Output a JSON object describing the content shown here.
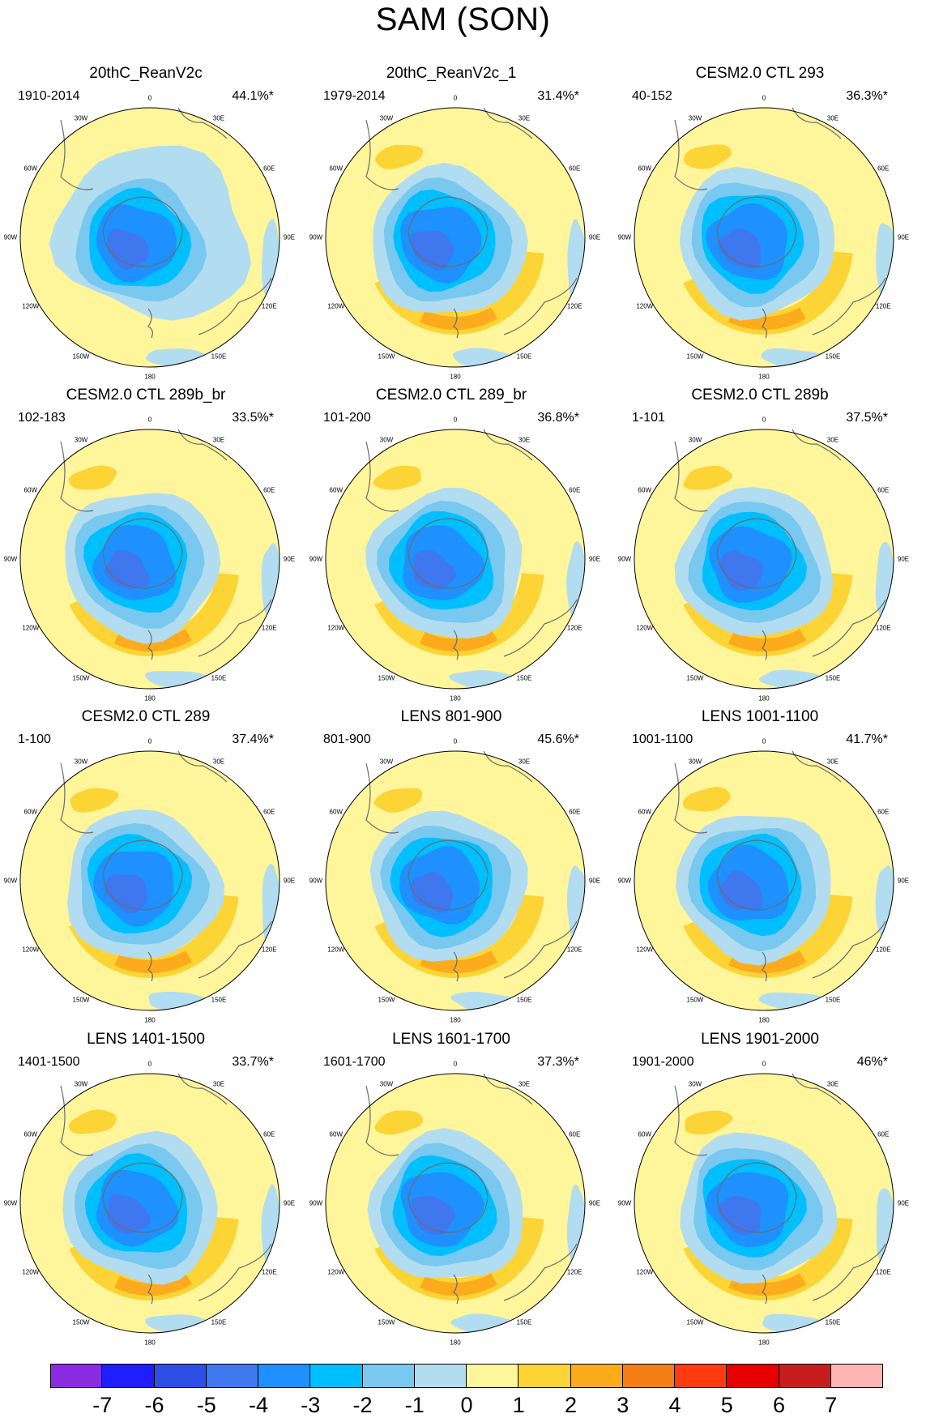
{
  "title": "SAM (SON)",
  "lon_labels": [
    "0",
    "30E",
    "60E",
    "90E",
    "120E",
    "150E",
    "180",
    "150W",
    "120W",
    "90W",
    "60W",
    "30W"
  ],
  "colors": {
    "coast": "#6b6b6b",
    "levels": [
      "#8a2be2",
      "#1e1eff",
      "#2e4fe6",
      "#3f77ef",
      "#1e90ff",
      "#00bfff",
      "#78c8f0",
      "#b2dcf0",
      "#fff59b",
      "#fcd435",
      "#fcab1c",
      "#f57d16",
      "#ff3c0f",
      "#e70000",
      "#c81d1d",
      "#ffb4b4"
    ]
  },
  "colorbar": {
    "labels": [
      "-7",
      "-6",
      "-5",
      "-4",
      "-3",
      "-2",
      "-1",
      "0",
      "1",
      "2",
      "3",
      "4",
      "5",
      "6",
      "7"
    ]
  },
  "panels": [
    {
      "title": "20thC_ReanV2c",
      "years": "1910-2014",
      "pct": "44.1%*"
    },
    {
      "title": "20thC_ReanV2c_1",
      "years": "1979-2014",
      "pct": "31.4%*"
    },
    {
      "title": "CESM2.0 CTL 293",
      "years": "40-152",
      "pct": "36.3%*"
    },
    {
      "title": "CESM2.0 CTL 289b_br",
      "years": "102-183",
      "pct": "33.5%*"
    },
    {
      "title": "CESM2.0 CTL 289_br",
      "years": "101-200",
      "pct": "36.8%*"
    },
    {
      "title": "CESM2.0 CTL 289b",
      "years": "1-101",
      "pct": "37.5%*"
    },
    {
      "title": "CESM2.0 CTL 289",
      "years": "1-100",
      "pct": "37.4%*"
    },
    {
      "title": "LENS 801-900",
      "years": "801-900",
      "pct": "45.6%*"
    },
    {
      "title": "LENS 1001-1100",
      "years": "1001-1100",
      "pct": "41.7%*"
    },
    {
      "title": "LENS 1401-1500",
      "years": "1401-1500",
      "pct": "33.7%*"
    },
    {
      "title": "LENS 1601-1700",
      "years": "1601-1700",
      "pct": "37.3%*"
    },
    {
      "title": "LENS 1901-2000",
      "years": "1901-2000",
      "pct": "46%*"
    }
  ]
}
